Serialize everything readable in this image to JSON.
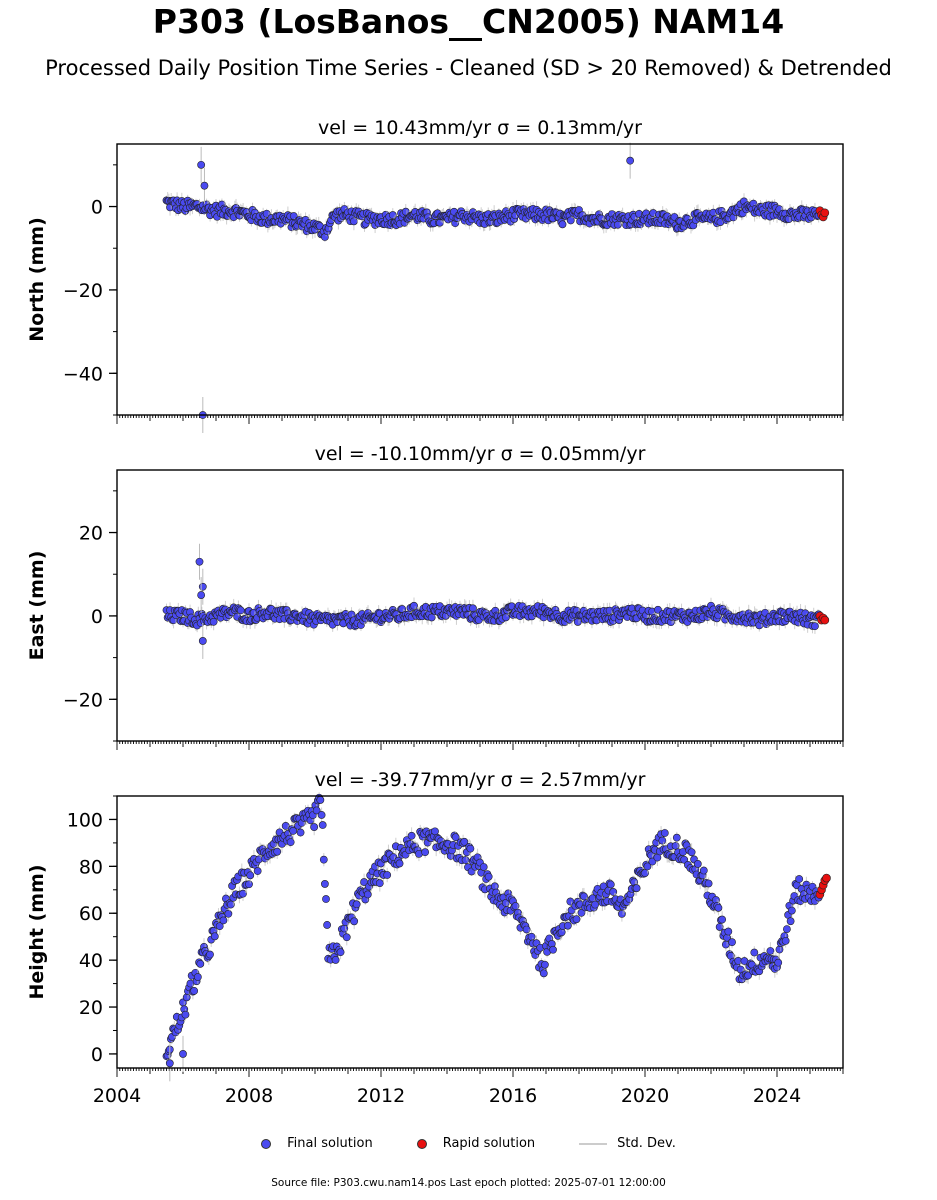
{
  "title": "P303 (LosBanos__CN2005) NAM14",
  "subtitle": "Processed Daily Position Time Series - Cleaned (SD > 20 Removed) & Detrended",
  "legend": {
    "final_label": "Final solution",
    "rapid_label": "Rapid solution",
    "std_label": "Std. Dev.",
    "final_color": "#4a4af0",
    "rapid_color": "#e81010",
    "std_color": "#cccccc"
  },
  "footer": {
    "source": "Source file: P303.cwu.nam14.pos  Last epoch plotted: 2025-07-01 12:00:00"
  },
  "chart_data": [
    {
      "type": "scatter",
      "title": "vel = 10.43mm/yr   σ = 0.13mm/yr",
      "ylabel": "North (mm)",
      "xlim": [
        2004,
        2026
      ],
      "ylim": [
        -50,
        15
      ],
      "yticks": [
        0,
        -20,
        -40
      ],
      "series": [
        {
          "name": "Final solution",
          "x": [
            2005.5,
            2006.0,
            2006.5,
            2007.0,
            2007.5,
            2008.0,
            2008.5,
            2009.0,
            2009.5,
            2010.0,
            2010.3,
            2010.6,
            2011.0,
            2011.5,
            2012.0,
            2012.5,
            2013.0,
            2013.5,
            2014.0,
            2014.5,
            2015.0,
            2015.5,
            2016.0,
            2016.5,
            2017.0,
            2017.5,
            2018.0,
            2018.5,
            2019.0,
            2019.5,
            2020.0,
            2020.5,
            2021.0,
            2021.5,
            2022.0,
            2022.5,
            2023.0,
            2023.5,
            2024.0,
            2024.5,
            2025.0,
            2025.3
          ],
          "y": [
            1,
            0,
            0,
            -1,
            -1,
            -2,
            -3,
            -3,
            -4,
            -5,
            -6,
            -2,
            -2,
            -3,
            -3,
            -3,
            -2,
            -3,
            -3,
            -2,
            -3,
            -3,
            -2,
            -2,
            -2,
            -3,
            -2,
            -3,
            -3,
            -3,
            -3,
            -3,
            -4,
            -3,
            -3,
            -2,
            0,
            -1,
            -1,
            -2,
            -2,
            -2
          ],
          "outliers": [
            [
              2006.55,
              10
            ],
            [
              2006.65,
              5
            ],
            [
              2019.55,
              11
            ],
            [
              2006.6,
              -50
            ]
          ]
        },
        {
          "name": "Rapid solution",
          "x": [
            2025.3,
            2025.35,
            2025.4,
            2025.45
          ],
          "y": [
            -1,
            -2,
            -2.5,
            -1.5
          ]
        }
      ]
    },
    {
      "type": "scatter",
      "title": "vel = -10.10mm/yr   σ = 0.05mm/yr",
      "ylabel": "East (mm)",
      "xlim": [
        2004,
        2026
      ],
      "ylim": [
        -30,
        35
      ],
      "yticks": [
        20,
        0,
        -20
      ],
      "series": [
        {
          "name": "Final solution",
          "x": [
            2005.5,
            2006.0,
            2006.5,
            2007.0,
            2007.5,
            2008.0,
            2008.5,
            2009.0,
            2009.5,
            2010.0,
            2010.5,
            2011.0,
            2011.5,
            2012.0,
            2012.5,
            2013.0,
            2013.5,
            2014.0,
            2014.5,
            2015.0,
            2015.5,
            2016.0,
            2016.5,
            2017.0,
            2017.5,
            2018.0,
            2018.5,
            2019.0,
            2019.5,
            2020.0,
            2020.5,
            2021.0,
            2021.5,
            2022.0,
            2022.5,
            2023.0,
            2023.5,
            2024.0,
            2024.5,
            2025.0,
            2025.3
          ],
          "y": [
            0,
            0,
            -1,
            0,
            1,
            0,
            1,
            0,
            0,
            -1,
            -1,
            -1,
            -1,
            0,
            0,
            1,
            1,
            1,
            1,
            0,
            0,
            1,
            1,
            1,
            0,
            0,
            0,
            0,
            1,
            0,
            0,
            0,
            0,
            1,
            0,
            0,
            -1,
            0,
            0,
            -1,
            -1
          ],
          "outliers": [
            [
              2006.5,
              13
            ],
            [
              2006.6,
              7
            ],
            [
              2006.55,
              5
            ],
            [
              2006.6,
              -6
            ]
          ]
        },
        {
          "name": "Rapid solution",
          "x": [
            2025.3,
            2025.35,
            2025.4,
            2025.45
          ],
          "y": [
            0,
            -1,
            -0.5,
            -1
          ]
        }
      ]
    },
    {
      "type": "scatter",
      "title": "vel = -39.77mm/yr   σ = 2.57mm/yr",
      "ylabel": "Height (mm)",
      "xlim": [
        2004,
        2026
      ],
      "ylim": [
        -6,
        110
      ],
      "yticks": [
        100,
        80,
        60,
        40,
        20,
        0
      ],
      "xticks": [
        "2004",
        "2008",
        "2012",
        "2016",
        "2020",
        "2024"
      ],
      "series": [
        {
          "name": "Final solution",
          "x": [
            2005.5,
            2005.7,
            2006.0,
            2006.3,
            2006.6,
            2007.0,
            2007.3,
            2007.6,
            2008.0,
            2008.3,
            2008.6,
            2009.0,
            2009.3,
            2009.6,
            2009.9,
            2010.2,
            2010.4,
            2010.7,
            2011.0,
            2011.3,
            2011.6,
            2012.0,
            2012.3,
            2012.6,
            2013.0,
            2013.3,
            2013.6,
            2014.0,
            2014.3,
            2014.6,
            2015.0,
            2015.3,
            2015.6,
            2016.0,
            2016.3,
            2016.6,
            2016.9,
            2017.1,
            2017.4,
            2017.7,
            2018.0,
            2018.3,
            2018.6,
            2019.0,
            2019.3,
            2019.6,
            2020.0,
            2020.3,
            2020.6,
            2021.0,
            2021.3,
            2021.6,
            2022.0,
            2022.3,
            2022.6,
            2022.9,
            2023.2,
            2023.5,
            2023.8,
            2024.0,
            2024.3,
            2024.6,
            2025.0,
            2025.3
          ],
          "y": [
            2,
            8,
            18,
            30,
            40,
            52,
            62,
            70,
            76,
            83,
            88,
            92,
            95,
            97,
            100,
            106,
            40,
            45,
            55,
            65,
            72,
            78,
            82,
            86,
            89,
            91,
            90,
            90,
            88,
            85,
            78,
            70,
            66,
            62,
            55,
            48,
            38,
            45,
            55,
            60,
            62,
            65,
            68,
            68,
            62,
            68,
            80,
            88,
            90,
            88,
            85,
            78,
            68,
            55,
            45,
            35,
            38,
            40,
            42,
            38,
            55,
            70,
            68,
            70
          ],
          "outliers": [
            [
              2005.6,
              -4
            ],
            [
              2006.0,
              0
            ]
          ]
        },
        {
          "name": "Rapid solution",
          "x": [
            2025.3,
            2025.35,
            2025.4,
            2025.45,
            2025.5
          ],
          "y": [
            68,
            70,
            72,
            74,
            75
          ]
        }
      ]
    }
  ]
}
